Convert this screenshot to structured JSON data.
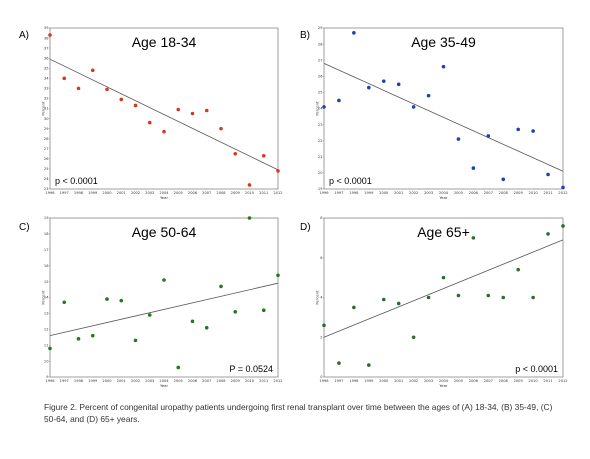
{
  "caption": "Figure 2. Percent of congenital uropathy patients undergoing first renal transplant over time between the ages of (A) 18-34, (B) 35-49, (C) 50-64, and (D) 65+ years.",
  "chart_data": [
    {
      "type": "scatter",
      "panel": "A)",
      "title": "Age 18-34",
      "annotation": "p < 0.0001",
      "xlabel": "Year",
      "ylabel": "Percent",
      "xlim": [
        1996,
        2012
      ],
      "ylim": [
        23,
        39
      ],
      "yticks": [
        23,
        24,
        25,
        26,
        27,
        28,
        29,
        30,
        31,
        32,
        33,
        34,
        35,
        36,
        37,
        38,
        39
      ],
      "xticks": [
        1996,
        1997,
        1998,
        1999,
        2000,
        2001,
        2002,
        2003,
        2004,
        2005,
        2006,
        2007,
        2008,
        2009,
        2010,
        2011,
        2012
      ],
      "color": "#d9391b",
      "annotation_pos": "bottom-left",
      "trend": [
        [
          1996,
          35.9
        ],
        [
          2012,
          24.9
        ]
      ],
      "x": [
        1996,
        1997,
        1998,
        1999,
        2000,
        2001,
        2002,
        2003,
        2004,
        2005,
        2006,
        2007,
        2008,
        2009,
        2010,
        2011,
        2012
      ],
      "y": [
        38.3,
        34.0,
        33.0,
        34.8,
        32.9,
        31.9,
        31.3,
        29.6,
        28.7,
        30.9,
        30.5,
        30.8,
        29.0,
        26.5,
        23.4,
        26.3,
        24.8
      ]
    },
    {
      "type": "scatter",
      "panel": "B)",
      "title": "Age 35-49",
      "annotation": "p < 0.0001",
      "xlabel": "Year",
      "ylabel": "Percent",
      "xlim": [
        1996,
        2012
      ],
      "ylim": [
        19,
        29
      ],
      "yticks": [
        19,
        20,
        21,
        22,
        23,
        24,
        25,
        26,
        27,
        28,
        29
      ],
      "xticks": [
        1996,
        1997,
        1998,
        1999,
        2000,
        2001,
        2002,
        2003,
        2004,
        2005,
        2006,
        2007,
        2008,
        2009,
        2010,
        2011,
        2012
      ],
      "color": "#1f3fb5",
      "annotation_pos": "bottom-left",
      "trend": [
        [
          1996,
          26.8
        ],
        [
          2012,
          20.1
        ]
      ],
      "x": [
        1996,
        1997,
        1998,
        1999,
        2000,
        2001,
        2002,
        2003,
        2004,
        2005,
        2006,
        2007,
        2008,
        2009,
        2010,
        2011,
        2012
      ],
      "y": [
        24.1,
        24.5,
        28.7,
        25.3,
        25.7,
        25.5,
        24.1,
        24.8,
        26.6,
        22.1,
        20.3,
        22.3,
        19.6,
        22.7,
        22.6,
        19.9,
        19.1
      ]
    },
    {
      "type": "scatter",
      "panel": "C)",
      "title": "Age 50-64",
      "annotation": "P = 0.0524",
      "xlabel": "Year",
      "ylabel": "Percent",
      "xlim": [
        1996,
        2012
      ],
      "ylim": [
        9,
        19
      ],
      "yticks": [
        9,
        10,
        11,
        12,
        13,
        14,
        15,
        16,
        17,
        18,
        19
      ],
      "xticks": [
        1996,
        1997,
        1998,
        1999,
        2000,
        2001,
        2002,
        2003,
        2004,
        2005,
        2006,
        2007,
        2008,
        2009,
        2010,
        2011,
        2012
      ],
      "color": "#1f7a1f",
      "annotation_pos": "bottom-right",
      "trend": [
        [
          1996,
          11.6
        ],
        [
          2012,
          14.9
        ]
      ],
      "x": [
        1996,
        1997,
        1998,
        1999,
        2000,
        2001,
        2002,
        2003,
        2004,
        2005,
        2006,
        2007,
        2008,
        2009,
        2010,
        2011,
        2012
      ],
      "y": [
        10.8,
        13.7,
        11.4,
        11.6,
        13.9,
        13.8,
        11.3,
        12.9,
        15.1,
        9.6,
        12.5,
        12.1,
        14.7,
        13.1,
        19.0,
        13.2,
        15.4
      ]
    },
    {
      "type": "scatter",
      "panel": "D)",
      "title": "Age 65+",
      "annotation": "p < 0.0001",
      "xlabel": "Year",
      "ylabel": "Percent",
      "xlim": [
        1996,
        2012
      ],
      "ylim": [
        0,
        8
      ],
      "yticks": [
        0,
        2,
        4,
        6,
        8
      ],
      "xticks": [
        1996,
        1997,
        1998,
        1999,
        2000,
        2001,
        2002,
        2003,
        2004,
        2005,
        2006,
        2007,
        2008,
        2009,
        2010,
        2011,
        2012
      ],
      "color": "#2d6b3a",
      "annotation_pos": "bottom-right",
      "trend": [
        [
          1996,
          2.0
        ],
        [
          2012,
          6.9
        ]
      ],
      "x": [
        1996,
        1997,
        1998,
        1999,
        2000,
        2001,
        2002,
        2003,
        2004,
        2005,
        2006,
        2007,
        2008,
        2009,
        2010,
        2011,
        2012
      ],
      "y": [
        2.6,
        0.7,
        3.5,
        0.6,
        3.9,
        3.7,
        2.0,
        4.0,
        5.0,
        4.1,
        7.0,
        4.1,
        4.0,
        5.4,
        4.0,
        7.2,
        7.6
      ]
    }
  ]
}
